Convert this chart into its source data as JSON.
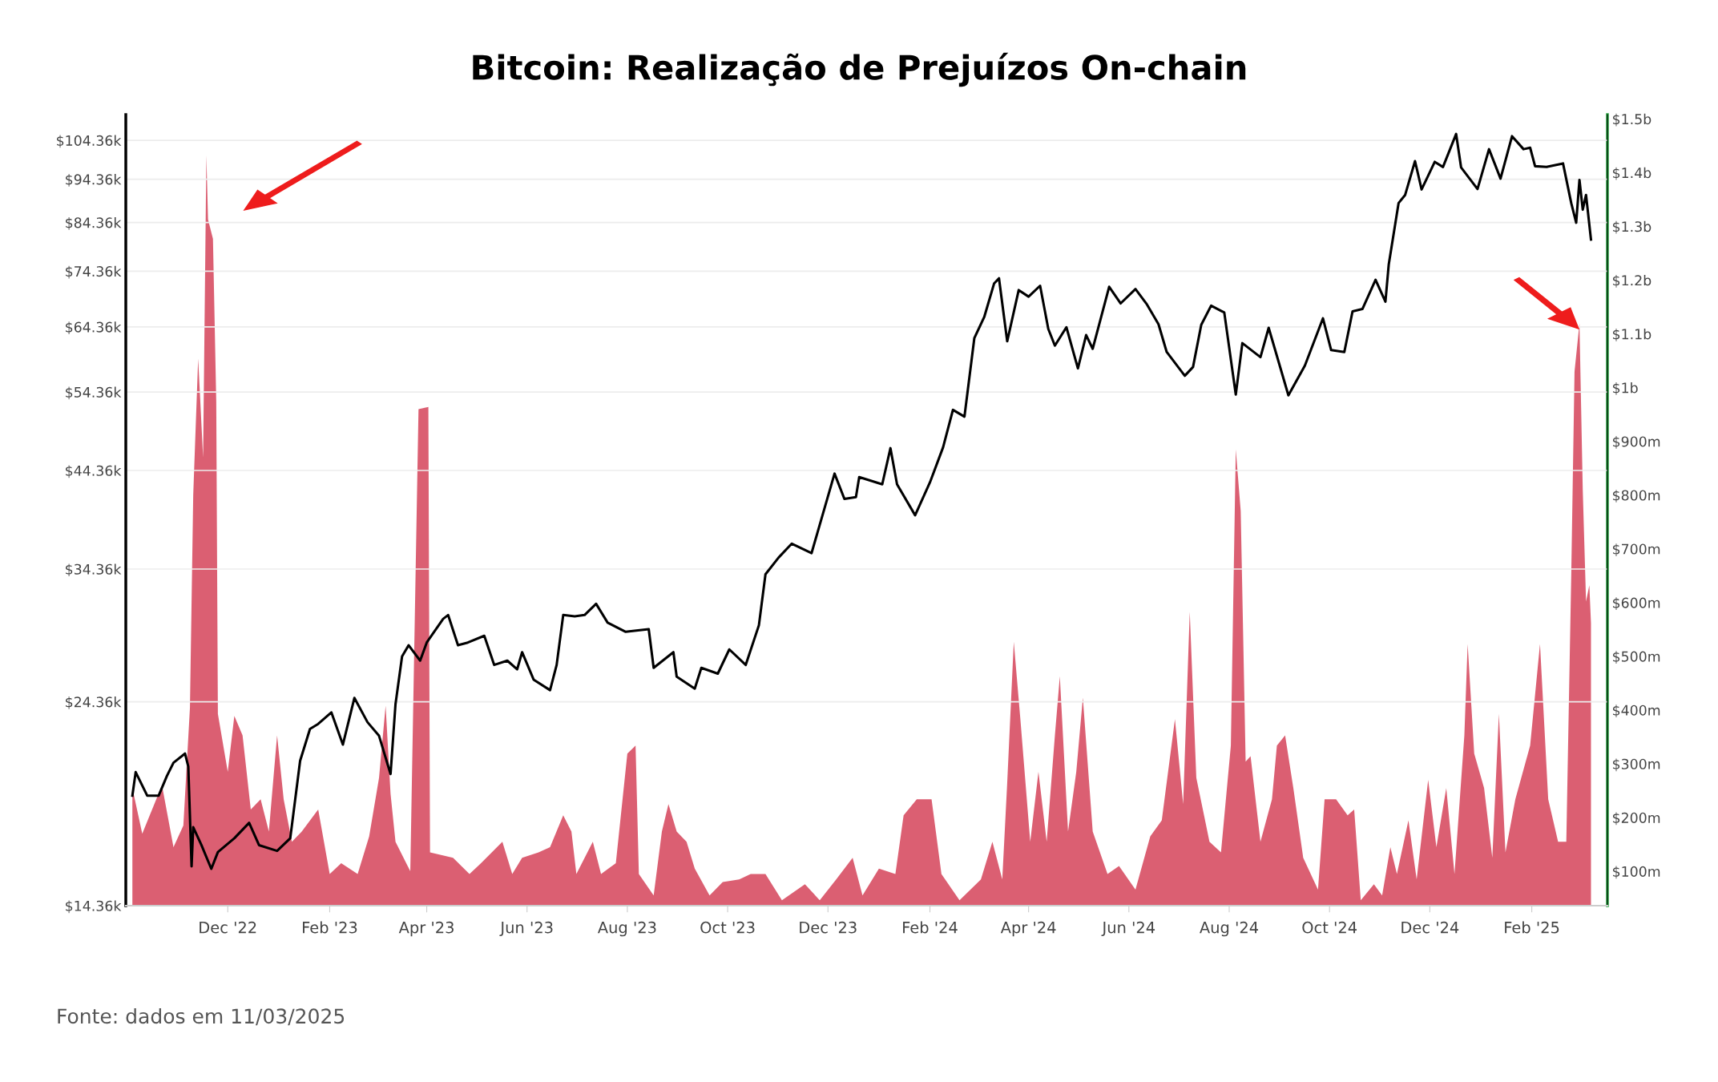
{
  "chart_data": {
    "type": "line",
    "title": "Bitcoin: Realização de Prejuízos On-chain",
    "annotations": [
      "Fonte: dados em 11/03/2025"
    ],
    "log": "y",
    "grid": "y",
    "xlim": [
      "2022-09-30",
      "2025-03-19"
    ],
    "xticks": [
      {
        "value": "2022-12-01",
        "label": "Dec '22"
      },
      {
        "value": "2023-02-01",
        "label": "Feb '23"
      },
      {
        "value": "2023-04-01",
        "label": "Apr '23"
      },
      {
        "value": "2023-06-01",
        "label": "Jun '23"
      },
      {
        "value": "2023-08-01",
        "label": "Aug '23"
      },
      {
        "value": "2023-10-01",
        "label": "Oct '23"
      },
      {
        "value": "2023-12-01",
        "label": "Dec '23"
      },
      {
        "value": "2024-02-01",
        "label": "Feb '24"
      },
      {
        "value": "2024-04-01",
        "label": "Apr '24"
      },
      {
        "value": "2024-06-01",
        "label": "Jun '24"
      },
      {
        "value": "2024-08-01",
        "label": "Aug '24"
      },
      {
        "value": "2024-10-01",
        "label": "Oct '24"
      },
      {
        "value": "2024-12-01",
        "label": "Dec '24"
      },
      {
        "value": "2025-02-01",
        "label": "Feb '25"
      }
    ],
    "ylim": [
      14360,
      111560
    ],
    "yticks": [
      {
        "value": 14360,
        "label": "$14.36k"
      },
      {
        "value": 24360,
        "label": "$24.36k"
      },
      {
        "value": 34360,
        "label": "$34.36k"
      },
      {
        "value": 44360,
        "label": "$44.36k"
      },
      {
        "value": 54360,
        "label": "$54.36k"
      },
      {
        "value": 64360,
        "label": "$64.36k"
      },
      {
        "value": 74360,
        "label": "$74.36k"
      },
      {
        "value": 84360,
        "label": "$84.36k"
      },
      {
        "value": 94360,
        "label": "$94.36k"
      },
      {
        "value": 104360,
        "label": "$104.36k"
      }
    ],
    "y2lim": [
      36000000,
      1508000000
    ],
    "y2ticks": [
      {
        "value": 100000000,
        "label": "$100m"
      },
      {
        "value": 200000000,
        "label": "$200m"
      },
      {
        "value": 300000000,
        "label": "$300m"
      },
      {
        "value": 400000000,
        "label": "$400m"
      },
      {
        "value": 500000000,
        "label": "$500m"
      },
      {
        "value": 600000000,
        "label": "$600m"
      },
      {
        "value": 700000000,
        "label": "$700m"
      },
      {
        "value": 800000000,
        "label": "$800m"
      },
      {
        "value": 900000000,
        "label": "$900m"
      },
      {
        "value": 1000000000,
        "label": "$1b"
      },
      {
        "value": 1100000000,
        "label": "$1.1b"
      },
      {
        "value": 1200000000,
        "label": "$1.2b"
      },
      {
        "value": 1300000000,
        "label": "$1.3b"
      },
      {
        "value": 1400000000,
        "label": "$1.4b"
      },
      {
        "value": 1500000000,
        "label": "$1.5b"
      }
    ],
    "series": [
      {
        "type": "area",
        "axis": "y2",
        "color": "#d9566a",
        "x": [
          "2022-10-04",
          "2022-10-10",
          "2022-10-16",
          "2022-10-22",
          "2022-10-29",
          "2022-11-04",
          "2022-11-08",
          "2022-11-10",
          "2022-11-13",
          "2022-11-16",
          "2022-11-18",
          "2022-11-19",
          "2022-11-22",
          "2022-11-24",
          "2022-11-25",
          "2022-12-01",
          "2022-12-05",
          "2022-12-10",
          "2022-12-15",
          "2022-12-21",
          "2022-12-26",
          "2022-12-31",
          "2023-01-04",
          "2023-01-09",
          "2023-01-15",
          "2023-01-25",
          "2023-02-01",
          "2023-02-08",
          "2023-02-18",
          "2023-02-25",
          "2023-03-03",
          "2023-03-07",
          "2023-03-10",
          "2023-03-13",
          "2023-03-22",
          "2023-03-27",
          "2023-04-02",
          "2023-04-03",
          "2023-04-17",
          "2023-04-27",
          "2023-05-04",
          "2023-05-17",
          "2023-05-23",
          "2023-05-29",
          "2023-06-08",
          "2023-06-15",
          "2023-06-23",
          "2023-06-28",
          "2023-07-01",
          "2023-07-11",
          "2023-07-16",
          "2023-07-25",
          "2023-08-01",
          "2023-08-06",
          "2023-08-08",
          "2023-08-17",
          "2023-08-22",
          "2023-08-26",
          "2023-08-31",
          "2023-09-06",
          "2023-09-11",
          "2023-09-20",
          "2023-09-28",
          "2023-10-08",
          "2023-10-15",
          "2023-10-24",
          "2023-11-03",
          "2023-11-17",
          "2023-11-26",
          "2023-12-06",
          "2023-12-16",
          "2023-12-22",
          "2024-01-01",
          "2024-01-11",
          "2024-01-16",
          "2024-01-24",
          "2024-02-02",
          "2024-02-08",
          "2024-02-19",
          "2024-03-03",
          "2024-03-10",
          "2024-03-16",
          "2024-03-19",
          "2024-03-23",
          "2024-03-27",
          "2024-04-02",
          "2024-04-07",
          "2024-04-12",
          "2024-04-17",
          "2024-04-20",
          "2024-04-25",
          "2024-04-30",
          "2024-05-04",
          "2024-05-10",
          "2024-05-19",
          "2024-05-26",
          "2024-06-05",
          "2024-06-14",
          "2024-06-21",
          "2024-06-29",
          "2024-07-04",
          "2024-07-08",
          "2024-07-12",
          "2024-07-20",
          "2024-07-27",
          "2024-08-02",
          "2024-08-05",
          "2024-08-08",
          "2024-08-11",
          "2024-08-14",
          "2024-08-20",
          "2024-08-27",
          "2024-08-30",
          "2024-09-04",
          "2024-09-09",
          "2024-09-15",
          "2024-09-24",
          "2024-09-28",
          "2024-10-05",
          "2024-10-12",
          "2024-10-16",
          "2024-10-20",
          "2024-10-28",
          "2024-11-02",
          "2024-11-07",
          "2024-11-11",
          "2024-11-18",
          "2024-11-23",
          "2024-11-30",
          "2024-12-05",
          "2024-12-11",
          "2024-12-16",
          "2024-12-22",
          "2024-12-24",
          "2024-12-28",
          "2025-01-03",
          "2025-01-08",
          "2025-01-12",
          "2025-01-16",
          "2025-01-22",
          "2025-01-31",
          "2025-02-06",
          "2025-02-11",
          "2025-02-17",
          "2025-02-22",
          "2025-02-25",
          "2025-02-27",
          "2025-03-02",
          "2025-03-04",
          "2025-03-06",
          "2025-03-08",
          "2025-03-09"
        ],
        "values": [
          255000000,
          170000000,
          215000000,
          260000000,
          145000000,
          185000000,
          404000000,
          800000000,
          1054000000,
          870000000,
          1432000000,
          1313000000,
          1277000000,
          975000000,
          393000000,
          285000000,
          389000000,
          353000000,
          215000000,
          234000000,
          174000000,
          353000000,
          234000000,
          155000000,
          174000000,
          215000000,
          95000000,
          115000000,
          95000000,
          165000000,
          274000000,
          408000000,
          244000000,
          155000000,
          100000000,
          960000000,
          964000000,
          135000000,
          125000000,
          95000000,
          115000000,
          155000000,
          95000000,
          125000000,
          135000000,
          145000000,
          204000000,
          174000000,
          95000000,
          155000000,
          95000000,
          115000000,
          319000000,
          334000000,
          95000000,
          55000000,
          174000000,
          225000000,
          174000000,
          155000000,
          105000000,
          55000000,
          80000000,
          85000000,
          95000000,
          95000000,
          46000000,
          76000000,
          46000000,
          85000000,
          125000000,
          55000000,
          105000000,
          95000000,
          204000000,
          234000000,
          234000000,
          95000000,
          46000000,
          85000000,
          155000000,
          85000000,
          264000000,
          527000000,
          383000000,
          155000000,
          285000000,
          155000000,
          353000000,
          463000000,
          174000000,
          285000000,
          423000000,
          174000000,
          95000000,
          110000000,
          66000000,
          165000000,
          195000000,
          383000000,
          225000000,
          583000000,
          274000000,
          155000000,
          135000000,
          334000000,
          885000000,
          770000000,
          304000000,
          314000000,
          155000000,
          234000000,
          334000000,
          353000000,
          255000000,
          125000000,
          66000000,
          234000000,
          234000000,
          204000000,
          215000000,
          46000000,
          76000000,
          55000000,
          145000000,
          95000000,
          195000000,
          85000000,
          270000000,
          145000000,
          255000000,
          95000000,
          353000000,
          523000000,
          319000000,
          255000000,
          125000000,
          393000000,
          135000000,
          234000000,
          334000000,
          523000000,
          234000000,
          155000000,
          155000000,
          651000000,
          1030000000,
          1119000000,
          810000000,
          602000000,
          632000000,
          562000000
        ]
      },
      {
        "color": "#000000",
        "x": [
          "2022-10-04",
          "2022-10-06",
          "2022-10-13",
          "2022-10-20",
          "2022-10-25",
          "2022-10-29",
          "2022-11-05",
          "2022-11-07",
          "2022-11-09",
          "2022-11-10",
          "2022-11-15",
          "2022-11-21",
          "2022-11-25",
          "2022-12-05",
          "2022-12-14",
          "2022-12-20",
          "2022-12-31",
          "2023-01-08",
          "2023-01-14",
          "2023-01-20",
          "2023-01-25",
          "2023-02-02",
          "2023-02-09",
          "2023-02-16",
          "2023-02-24",
          "2023-03-03",
          "2023-03-10",
          "2023-03-13",
          "2023-03-17",
          "2023-03-21",
          "2023-03-28",
          "2023-04-01",
          "2023-04-11",
          "2023-04-14",
          "2023-04-20",
          "2023-04-26",
          "2023-05-06",
          "2023-05-12",
          "2023-05-20",
          "2023-05-26",
          "2023-05-29",
          "2023-06-05",
          "2023-06-15",
          "2023-06-19",
          "2023-06-23",
          "2023-06-30",
          "2023-07-06",
          "2023-07-13",
          "2023-07-20",
          "2023-07-31",
          "2023-08-14",
          "2023-08-17",
          "2023-08-29",
          "2023-08-31",
          "2023-09-11",
          "2023-09-15",
          "2023-09-25",
          "2023-10-02",
          "2023-10-12",
          "2023-10-20",
          "2023-10-24",
          "2023-11-01",
          "2023-11-09",
          "2023-11-21",
          "2023-12-05",
          "2023-12-11",
          "2023-12-18",
          "2023-12-20",
          "2024-01-03",
          "2024-01-08",
          "2024-01-12",
          "2024-01-23",
          "2024-02-01",
          "2024-02-09",
          "2024-02-15",
          "2024-02-22",
          "2024-02-28",
          "2024-03-05",
          "2024-03-11",
          "2024-03-14",
          "2024-03-19",
          "2024-03-26",
          "2024-04-01",
          "2024-04-08",
          "2024-04-13",
          "2024-04-17",
          "2024-04-24",
          "2024-05-01",
          "2024-05-06",
          "2024-05-10",
          "2024-05-20",
          "2024-05-27",
          "2024-06-05",
          "2024-06-12",
          "2024-06-19",
          "2024-06-24",
          "2024-07-05",
          "2024-07-10",
          "2024-07-15",
          "2024-07-21",
          "2024-07-29",
          "2024-08-05",
          "2024-08-09",
          "2024-08-20",
          "2024-08-25",
          "2024-09-06",
          "2024-09-16",
          "2024-09-27",
          "2024-10-02",
          "2024-10-10",
          "2024-10-15",
          "2024-10-21",
          "2024-10-29",
          "2024-11-04",
          "2024-11-06",
          "2024-11-12",
          "2024-11-16",
          "2024-11-22",
          "2024-11-26",
          "2024-12-04",
          "2024-12-09",
          "2024-12-17",
          "2024-12-20",
          "2024-12-30",
          "2025-01-06",
          "2025-01-13",
          "2025-01-20",
          "2025-01-27",
          "2025-01-31",
          "2025-02-03",
          "2025-02-10",
          "2025-02-20",
          "2025-02-25",
          "2025-02-28",
          "2025-03-02",
          "2025-03-04",
          "2025-03-06",
          "2025-03-09"
        ],
        "values": [
          19100,
          20300,
          19100,
          19100,
          20100,
          20800,
          21300,
          20600,
          15900,
          17600,
          16800,
          15800,
          16500,
          17100,
          17800,
          16800,
          16550,
          17100,
          20900,
          22700,
          23000,
          23700,
          21800,
          24600,
          23100,
          22300,
          20200,
          24200,
          27400,
          28200,
          27100,
          28400,
          30200,
          30500,
          28200,
          28400,
          28900,
          26800,
          27100,
          26500,
          27700,
          25800,
          25100,
          26800,
          30500,
          30400,
          30500,
          31400,
          29900,
          29200,
          29400,
          26600,
          27700,
          26000,
          25200,
          26600,
          26200,
          27900,
          26800,
          29700,
          33900,
          35400,
          36700,
          35800,
          44000,
          41200,
          41400,
          43600,
          42800,
          47000,
          42800,
          39500,
          43000,
          47100,
          51900,
          51000,
          62500,
          66000,
          72000,
          73000,
          62000,
          70800,
          69600,
          71600,
          64000,
          61300,
          64300,
          57800,
          63000,
          60800,
          71400,
          68400,
          71000,
          68200,
          64800,
          60300,
          56700,
          58000,
          64700,
          68000,
          66800,
          54000,
          61700,
          59500,
          64200,
          53900,
          58200,
          65800,
          60600,
          60300,
          67000,
          67400,
          72700,
          68700,
          75600,
          88700,
          90600,
          98900,
          91900,
          98700,
          97400,
          106100,
          97300,
          92000,
          102000,
          94500,
          105500,
          102000,
          102400,
          97600,
          97400,
          98300,
          88700,
          84300,
          94200,
          87200,
          90600,
          80700
        ]
      }
    ]
  }
}
